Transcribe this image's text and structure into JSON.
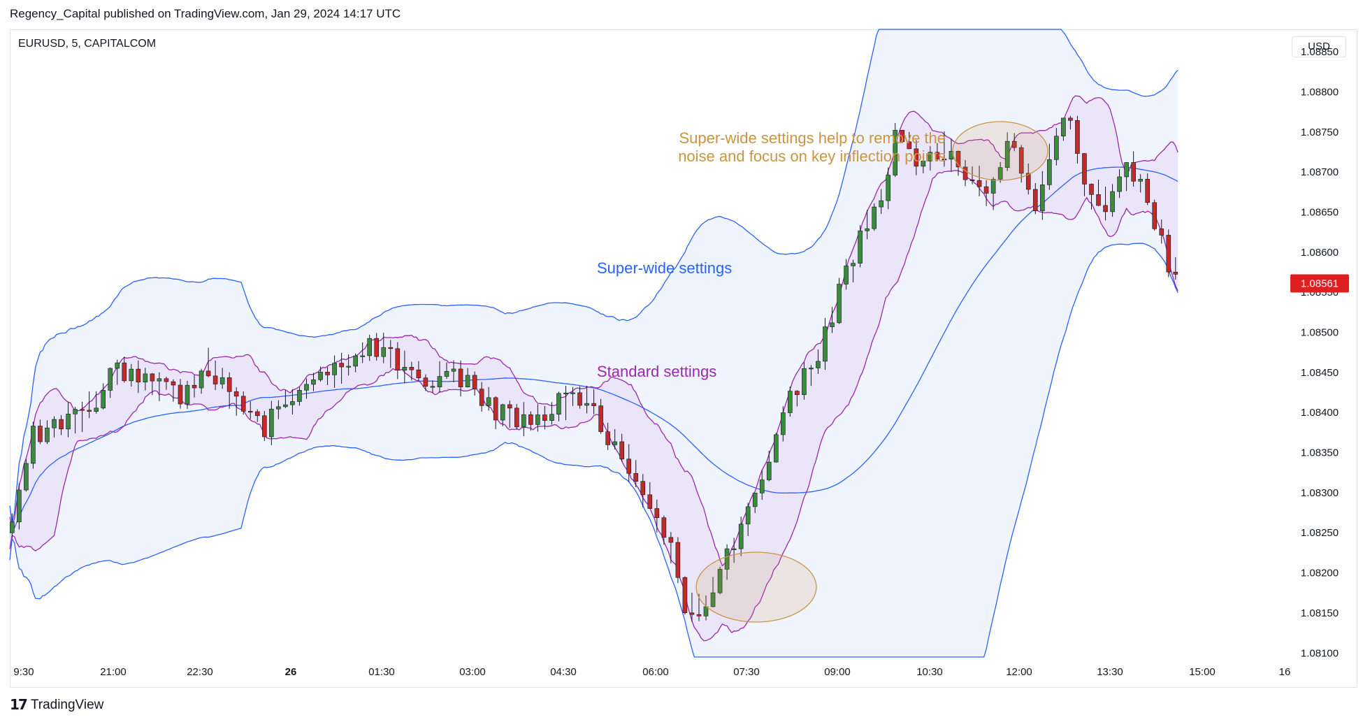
{
  "header": {
    "publisher": "Regency_Capital published on TradingView.com, Jan 29, 2024 14:17 UTC"
  },
  "symbol": "EURUSD, 5, CAPITALCOM",
  "currency": "USD",
  "footer": {
    "logo_icon": "tradingview-logo-icon",
    "brand": "TradingView"
  },
  "colors": {
    "up": "#26a69a",
    "up_fill": "#3b8a3e",
    "down": "#c62828",
    "wide_band": "#2962ff",
    "std_band": "#9c27b0",
    "annotation": "#c99543",
    "price_label_bg": "#e02020"
  },
  "chart_data": {
    "type": "candlestick",
    "x_tick_labels": [
      "9:30",
      "21:00",
      "22:30",
      "26",
      "01:30",
      "03:00",
      "04:30",
      "06:00",
      "07:30",
      "09:00",
      "10:30",
      "12:00",
      "13:30",
      "15:00",
      "16"
    ],
    "y_tick_labels": [
      "1.08850",
      "1.08800",
      "1.08750",
      "1.08700",
      "1.08650",
      "1.08600",
      "1.08550",
      "1.08500",
      "1.08450",
      "1.08400",
      "1.08350",
      "1.08300",
      "1.08250",
      "1.08200",
      "1.08150",
      "1.08100"
    ],
    "ylim": [
      1.08095,
      1.08878
    ],
    "last_price": "1.08561",
    "series": [
      {
        "name": "Super-wide settings",
        "label": "Super-wide settings"
      },
      {
        "name": "Standard settings",
        "label": "Standard settings"
      }
    ],
    "annotations": [
      "Super-wide settings help to remove the",
      "noise and focus on key inflection points"
    ],
    "close_path": [
      [
        0,
        1.0825
      ],
      [
        10,
        1.0837
      ],
      [
        20,
        1.0838
      ],
      [
        30,
        1.084
      ],
      [
        40,
        1.0842
      ],
      [
        45,
        1.0846
      ],
      [
        55,
        1.0844
      ],
      [
        65,
        1.0843
      ],
      [
        75,
        1.0842
      ],
      [
        85,
        1.0846
      ],
      [
        95,
        1.0842
      ],
      [
        105,
        1.084
      ],
      [
        110,
        1.0838
      ],
      [
        120,
        1.0842
      ],
      [
        130,
        1.0844
      ],
      [
        140,
        1.0845
      ],
      [
        150,
        1.0848
      ],
      [
        160,
        1.0848
      ],
      [
        170,
        1.0845
      ],
      [
        180,
        1.0844
      ],
      [
        190,
        1.0845
      ],
      [
        200,
        1.0843
      ],
      [
        210,
        1.084
      ],
      [
        220,
        1.0839
      ],
      [
        230,
        1.084
      ],
      [
        240,
        1.0842
      ],
      [
        250,
        1.0841
      ],
      [
        255,
        1.0838
      ],
      [
        265,
        1.0834
      ],
      [
        275,
        1.0828
      ],
      [
        285,
        1.0822
      ],
      [
        290,
        1.0816
      ],
      [
        295,
        1.0815
      ],
      [
        305,
        1.082
      ],
      [
        315,
        1.0826
      ],
      [
        325,
        1.0834
      ],
      [
        335,
        1.0842
      ],
      [
        345,
        1.0846
      ],
      [
        355,
        1.0854
      ],
      [
        365,
        1.0862
      ],
      [
        375,
        1.0868
      ],
      [
        380,
        1.0874
      ],
      [
        390,
        1.0871
      ],
      [
        400,
        1.0873
      ],
      [
        405,
        1.0872
      ],
      [
        410,
        1.087
      ],
      [
        420,
        1.0867
      ],
      [
        430,
        1.0874
      ],
      [
        440,
        1.0866
      ],
      [
        445,
        1.0872
      ],
      [
        455,
        1.0877
      ],
      [
        460,
        1.0868
      ],
      [
        470,
        1.0866
      ],
      [
        480,
        1.0871
      ],
      [
        490,
        1.0865
      ],
      [
        500,
        1.0856
      ]
    ]
  }
}
